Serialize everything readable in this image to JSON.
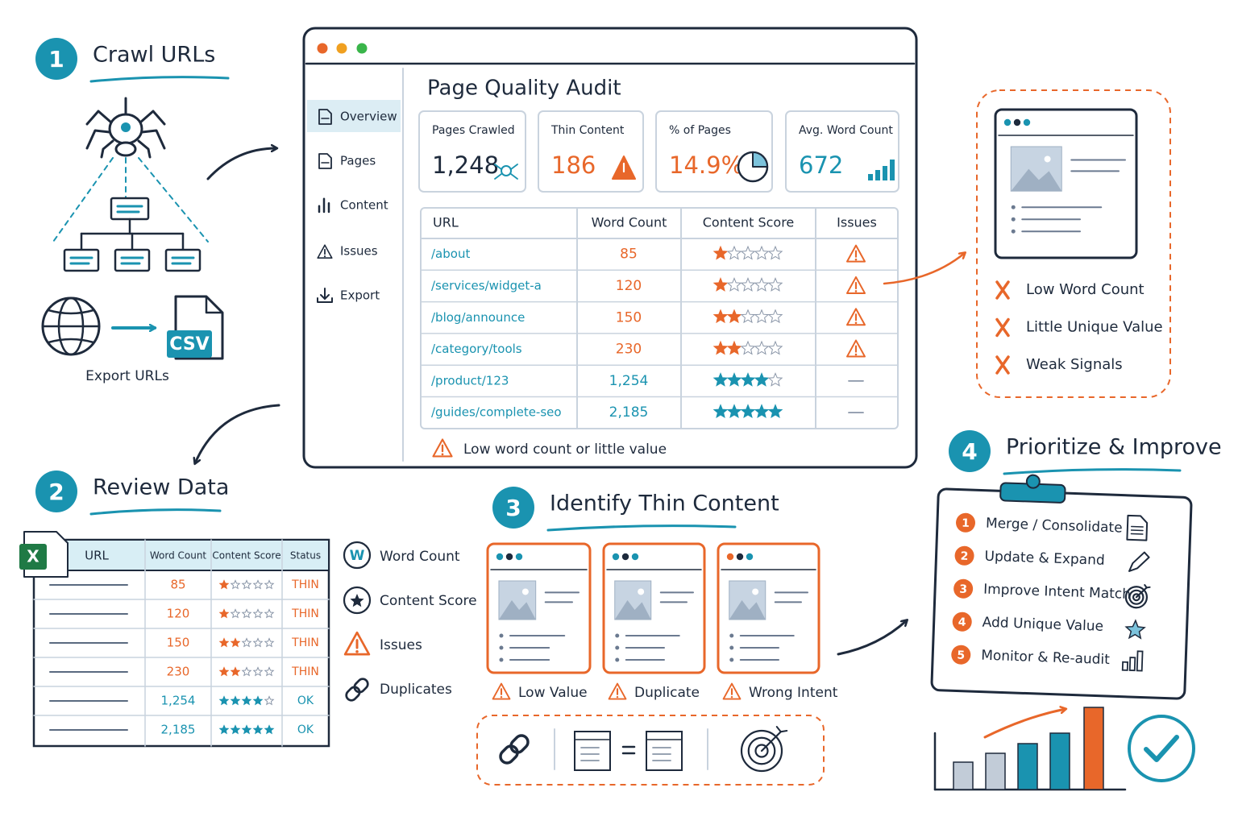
{
  "crawl": {
    "number": "1",
    "title": "Crawl URLs",
    "file_label": "CSV",
    "caption": "Export URLs"
  },
  "audit": {
    "title": "Page Quality Audit",
    "nav": [
      "Overview",
      "Pages",
      "Content",
      "Issues",
      "Export"
    ],
    "metrics": [
      {
        "label": "Pages Crawled",
        "value": "1,248",
        "color": "#1e2a3c"
      },
      {
        "label": "Thin Content",
        "value": "186",
        "color": "#e8672a"
      },
      {
        "label": "% of Pages",
        "value": "14.9%",
        "color": "#e8672a"
      },
      {
        "label": "Avg. Word Count",
        "value": "672",
        "color": "#1a93b0"
      }
    ],
    "table": {
      "headers": [
        "URL",
        "Word Count",
        "Content Score",
        "Issues"
      ],
      "rows": [
        {
          "url": "/about",
          "word_count": "85",
          "score": 1,
          "color": "#e8672a",
          "issue": true
        },
        {
          "url": "/services/widget-a",
          "word_count": "120",
          "score": 1,
          "color": "#e8672a",
          "issue": true
        },
        {
          "url": "/blog/announce",
          "word_count": "150",
          "score": 2,
          "color": "#e8672a",
          "issue": true
        },
        {
          "url": "/category/tools",
          "word_count": "230",
          "score": 2,
          "color": "#e8672a",
          "issue": true
        },
        {
          "url": "/product/123",
          "word_count": "1,254",
          "score": 4,
          "color": "#1a93b0",
          "issue": false
        },
        {
          "url": "/guides/complete-seo",
          "word_count": "2,185",
          "score": 5,
          "color": "#1a93b0",
          "issue": false
        }
      ]
    },
    "footnote": "Low word count or little value"
  },
  "thin_reasons": [
    "Low Word Count",
    "Little Unique Value",
    "Weak Signals"
  ],
  "review": {
    "number": "2",
    "title": "Review Data",
    "sheet": {
      "icon": "X",
      "headers": [
        "URL",
        "Word Count",
        "Content Score",
        "Status"
      ],
      "rows": [
        {
          "word_count": "85",
          "score": 1,
          "status": "THIN",
          "color": "#e8672a"
        },
        {
          "word_count": "120",
          "score": 1,
          "status": "THIN",
          "color": "#e8672a"
        },
        {
          "word_count": "150",
          "score": 2,
          "status": "THIN",
          "color": "#e8672a"
        },
        {
          "word_count": "230",
          "score": 2,
          "status": "THIN",
          "color": "#e8672a"
        },
        {
          "word_count": "1,254",
          "score": 4,
          "status": "OK",
          "color": "#1a93b0"
        },
        {
          "word_count": "2,185",
          "score": 5,
          "status": "OK",
          "color": "#1a93b0"
        }
      ]
    },
    "legend": [
      {
        "icon": "W",
        "label": "Word Count"
      },
      {
        "label": "Content Score"
      },
      {
        "label": "Issues"
      },
      {
        "label": "Duplicates"
      }
    ]
  },
  "identify": {
    "number": "3",
    "title": "Identify Thin Content",
    "types": [
      "Low Value",
      "Duplicate",
      "Wrong Intent"
    ]
  },
  "improve": {
    "number": "4",
    "title": "Prioritize & Improve",
    "actions": [
      {
        "number": "1",
        "label": "Merge / Consolidate"
      },
      {
        "number": "2",
        "label": "Update & Expand"
      },
      {
        "number": "3",
        "label": "Improve Intent Match"
      },
      {
        "number": "4",
        "label": "Add Unique Value"
      },
      {
        "number": "5",
        "label": "Monitor & Re-audit"
      }
    ]
  }
}
